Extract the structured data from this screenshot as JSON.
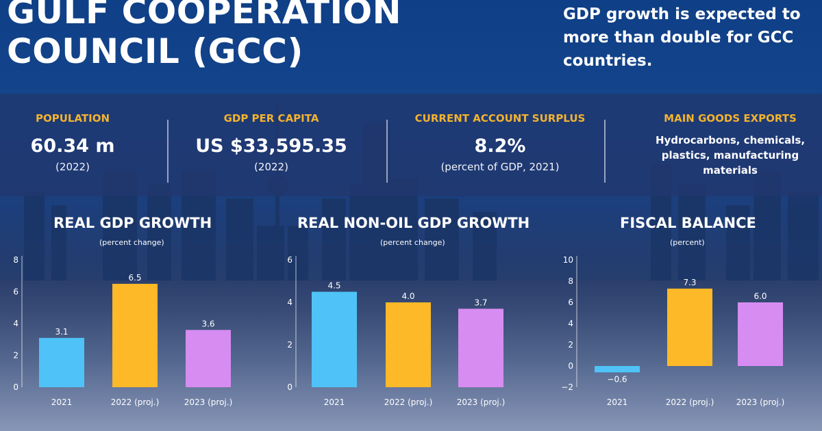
{
  "header": {
    "title_line1": "GULF COOPERATION",
    "title_line2": "COUNCIL (GCC)",
    "tagline": "GDP growth is expected to more than double for GCC countries."
  },
  "stats": {
    "population": {
      "label": "POPULATION",
      "value": "60.34 m",
      "note": "(2022)"
    },
    "gdp_per_capita": {
      "label": "GDP PER CAPITA",
      "value": "US $33,595.35",
      "note": "(2022)"
    },
    "current_account": {
      "label": "CURRENT ACCOUNT SURPLUS",
      "value": "8.2%",
      "note": "(percent of GDP, 2021)"
    },
    "exports": {
      "label": "MAIN GOODS EXPORTS",
      "value": "Hydrocarbons, chemicals, plastics, manufacturing materials"
    }
  },
  "colors": {
    "bar_2021": "#4fc3f7",
    "bar_2022": "#fdb927",
    "bar_2023": "#d78cf2",
    "accent_label": "#f3b32e"
  },
  "chart_data": [
    {
      "type": "bar",
      "title": "REAL GDP GROWTH",
      "subtitle": "(percent change)",
      "categories": [
        "2021",
        "2022 (proj.)",
        "2023 (proj.)"
      ],
      "values": [
        3.1,
        6.5,
        3.6
      ],
      "value_labels": [
        "3.1",
        "6.5",
        "3.6"
      ],
      "yticks": [
        "0",
        "2",
        "4",
        "6",
        "8"
      ],
      "ylim": [
        0,
        8
      ]
    },
    {
      "type": "bar",
      "title": "REAL NON-OIL GDP GROWTH",
      "subtitle": "(percent change)",
      "categories": [
        "2021",
        "2022 (proj.)",
        "2023 (proj.)"
      ],
      "values": [
        4.5,
        4.0,
        3.7
      ],
      "value_labels": [
        "4.5",
        "4.0",
        "3.7"
      ],
      "yticks": [
        "0",
        "2",
        "4",
        "6"
      ],
      "ylim": [
        0,
        6
      ]
    },
    {
      "type": "bar",
      "title": "FISCAL BALANCE",
      "subtitle": "(percent)",
      "categories": [
        "2021",
        "2022 (proj.)",
        "2023 (proj.)"
      ],
      "values": [
        -0.6,
        7.3,
        6.0
      ],
      "value_labels": [
        "−0.6",
        "7.3",
        "6.0"
      ],
      "yticks": [
        "−2",
        "0",
        "2",
        "4",
        "6",
        "8",
        "10"
      ],
      "ylim": [
        -2,
        10
      ]
    }
  ]
}
